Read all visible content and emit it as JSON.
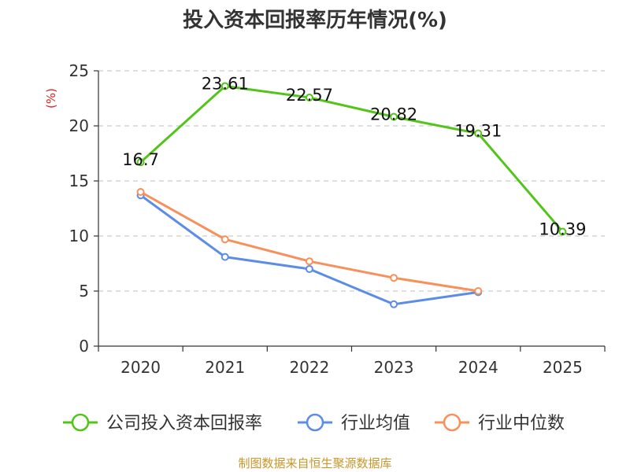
{
  "chart_data": {
    "type": "line",
    "title": "投入资本回报率历年情况(%)",
    "ylabel": "(%)",
    "xlabel": "",
    "ylim": [
      0,
      25
    ],
    "yticks": [
      0,
      5,
      10,
      15,
      20,
      25
    ],
    "grid": true,
    "legend_position": "bottom",
    "categories": [
      "2020",
      "2021",
      "2022",
      "2023",
      "2024",
      "2025"
    ],
    "series": [
      {
        "name": "公司投入资本回报率",
        "color": "#52c41a",
        "values": [
          16.7,
          23.61,
          22.57,
          20.82,
          19.31,
          10.39
        ],
        "show_labels": true
      },
      {
        "name": "行业均值",
        "color": "#5b8ce8",
        "values": [
          13.7,
          8.1,
          7.0,
          3.8,
          4.9,
          null
        ],
        "show_labels": false
      },
      {
        "name": "行业中位数",
        "color": "#f7905a",
        "values": [
          14.0,
          9.7,
          7.7,
          6.2,
          5.0,
          null
        ],
        "show_labels": false
      }
    ],
    "source": "制图数据来自恒生聚源数据库"
  }
}
